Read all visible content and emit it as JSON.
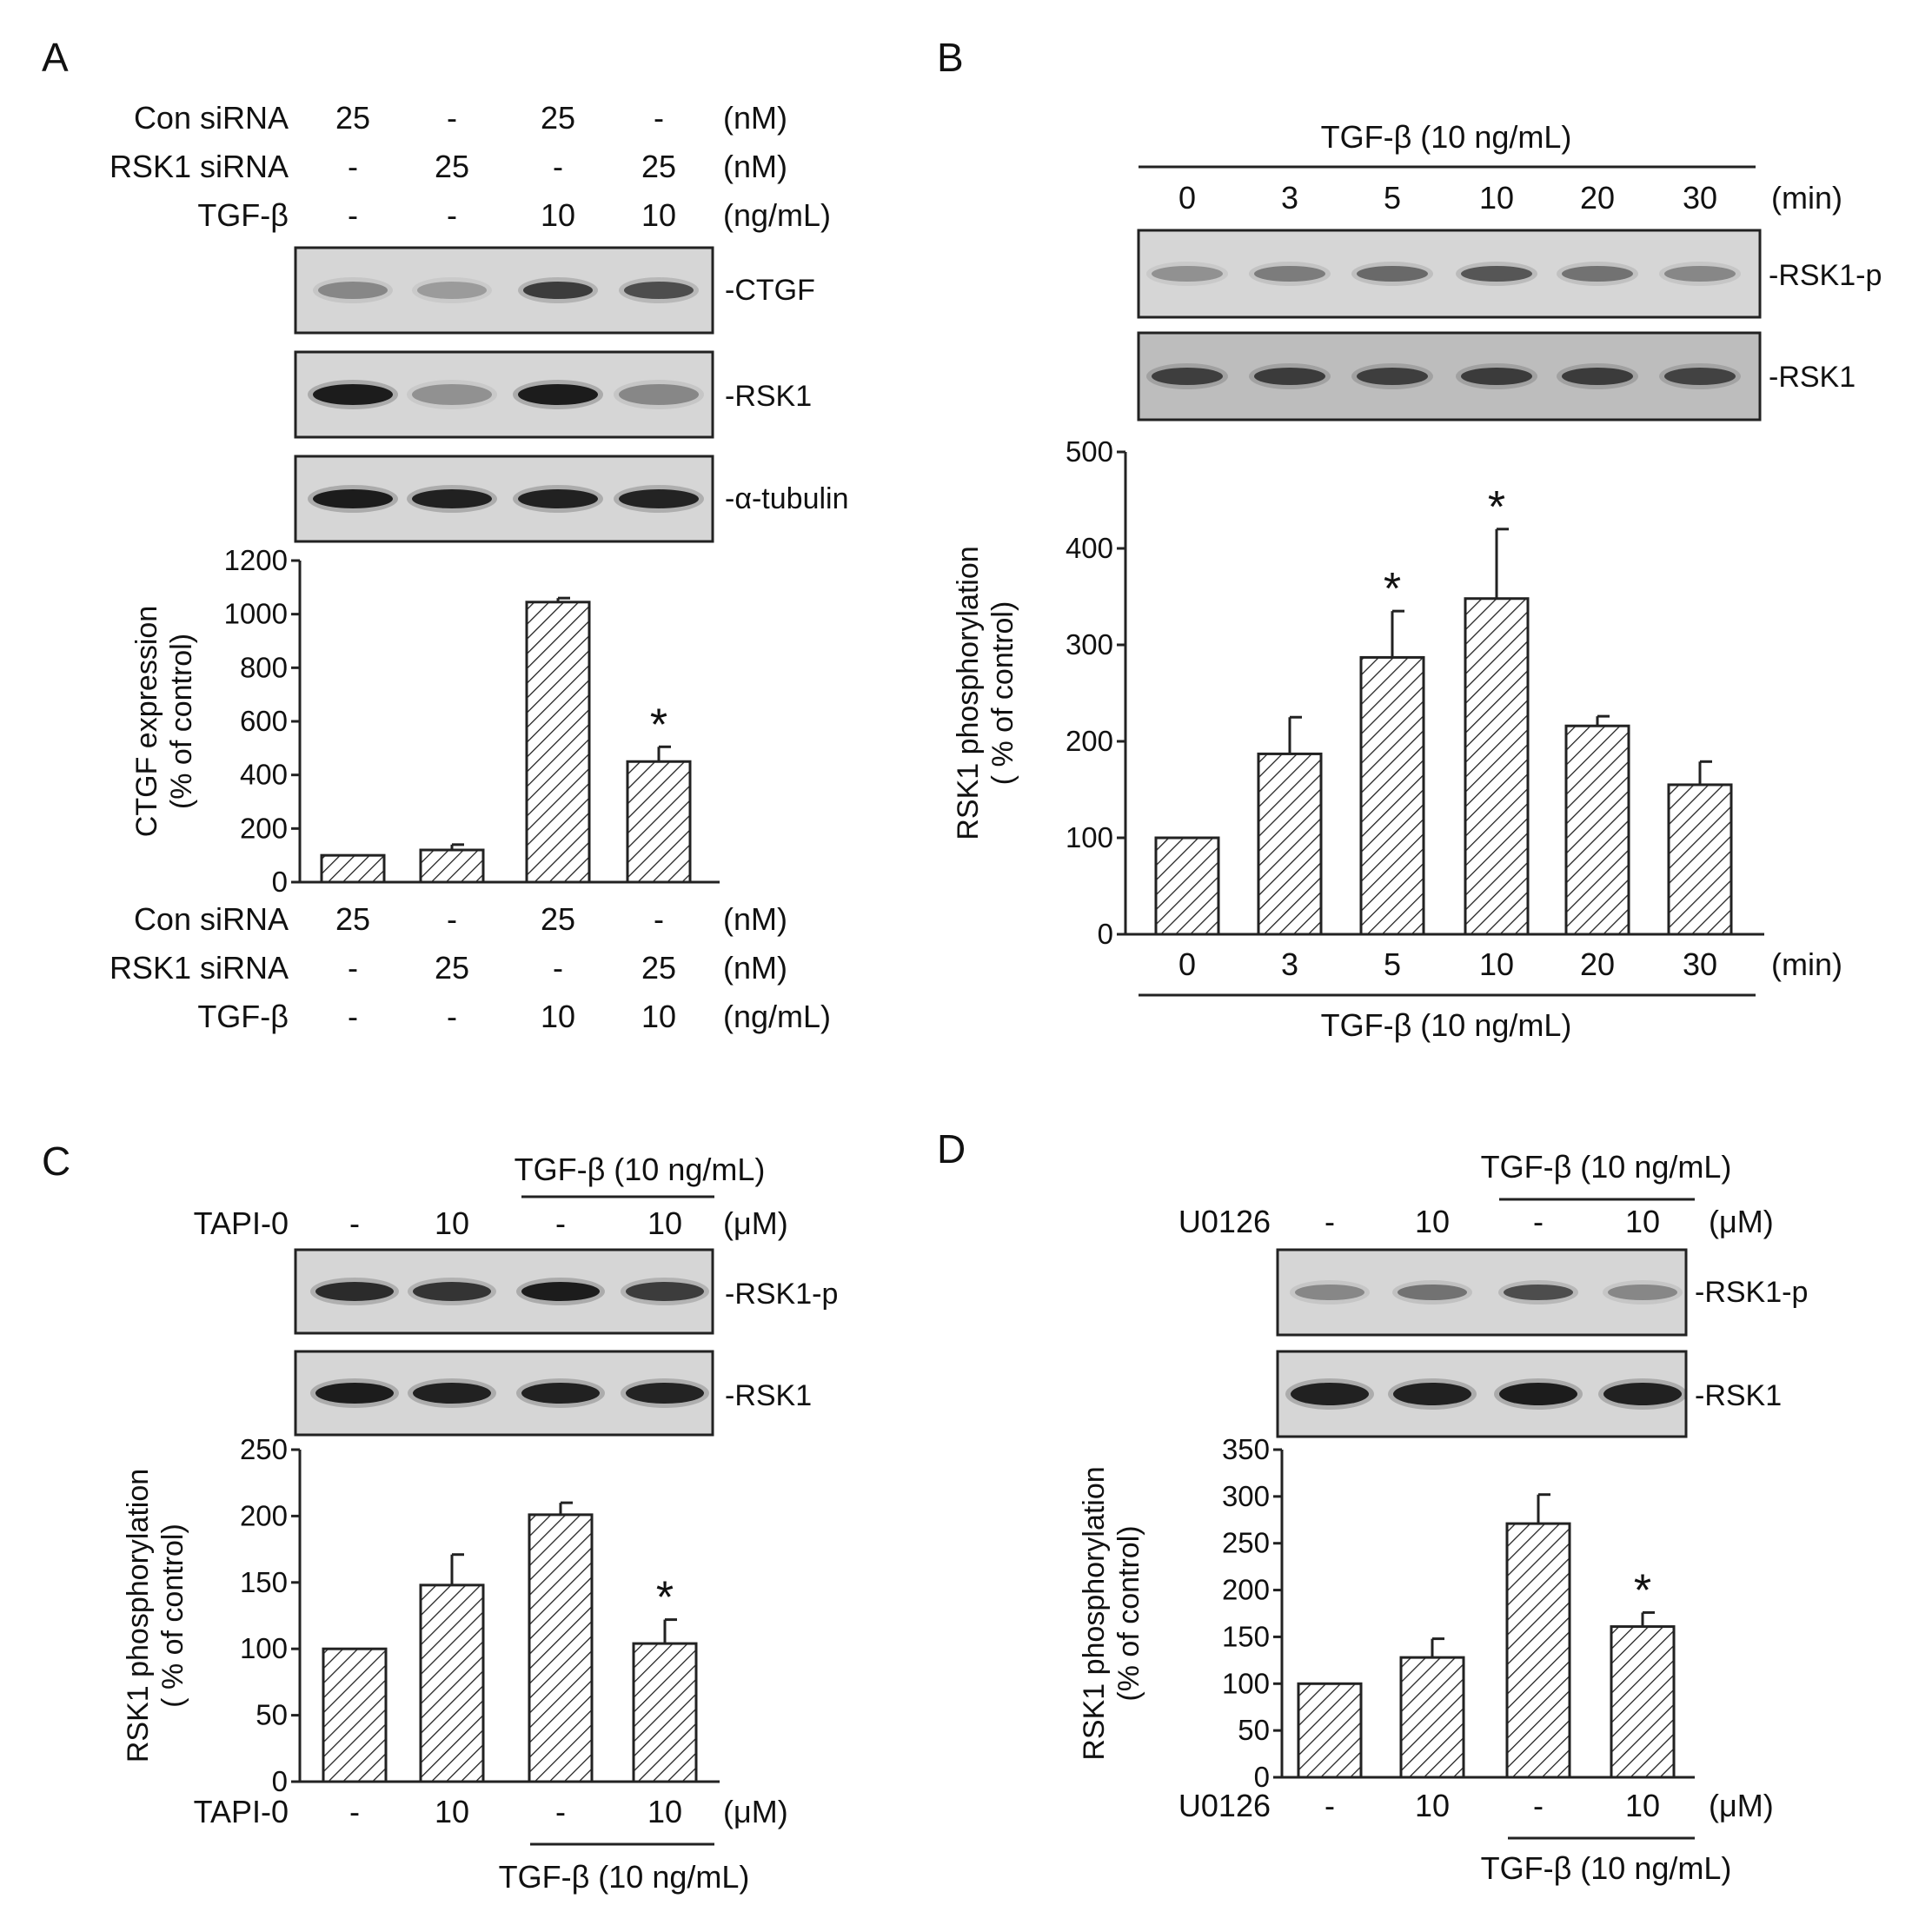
{
  "panels": {
    "A": {
      "letter": "A",
      "top_rows": [
        {
          "label": "Con siRNA",
          "values": [
            "25",
            "-",
            "25",
            "-"
          ],
          "unit": "(nM)"
        },
        {
          "label": "RSK1 siRNA",
          "values": [
            "-",
            "25",
            "-",
            "25"
          ],
          "unit": "(nM)"
        },
        {
          "label": "TGF-β",
          "values": [
            "-",
            "-",
            "10",
            "10"
          ],
          "unit": "(ng/mL)"
        }
      ],
      "blots": [
        "-CTGF",
        "-RSK1",
        "-α-tubulin"
      ],
      "bottom_rows": [
        {
          "label": "Con siRNA",
          "values": [
            "25",
            "-",
            "25",
            "-"
          ],
          "unit": "(nM)"
        },
        {
          "label": "RSK1 siRNA",
          "values": [
            "-",
            "25",
            "-",
            "25"
          ],
          "unit": "(nM)"
        },
        {
          "label": "TGF-β",
          "values": [
            "-",
            "-",
            "10",
            "10"
          ],
          "unit": "(ng/mL)"
        }
      ]
    },
    "B": {
      "letter": "B",
      "treatment_top": "TGF-β (10 ng/mL)",
      "times_top": [
        "0",
        "3",
        "5",
        "10",
        "20",
        "30"
      ],
      "time_unit": "(min)",
      "blots": [
        "-RSK1-p",
        "-RSK1"
      ],
      "times_bottom": [
        "0",
        "3",
        "5",
        "10",
        "20",
        "30"
      ],
      "treatment_bottom": "TGF-β (10 ng/mL)"
    },
    "C": {
      "letter": "C",
      "treatment_top": "TGF-β (10 ng/mL)",
      "top_row": {
        "label": "TAPI-0",
        "values": [
          "-",
          "10",
          "-",
          "10"
        ],
        "unit": "(μM)"
      },
      "blots": [
        "-RSK1-p",
        "-RSK1"
      ],
      "bottom_row": {
        "label": "TAPI-0",
        "values": [
          "-",
          "10",
          "-",
          "10"
        ],
        "unit": "(μM)"
      },
      "treatment_bottom": "TGF-β (10 ng/mL)"
    },
    "D": {
      "letter": "D",
      "treatment_top": "TGF-β (10 ng/mL)",
      "top_row": {
        "label": "U0126",
        "values": [
          "-",
          "10",
          "-",
          "10"
        ],
        "unit": "(μM)"
      },
      "blots": [
        "-RSK1-p",
        "-RSK1"
      ],
      "bottom_row": {
        "label": "U0126",
        "values": [
          "-",
          "10",
          "-",
          "10"
        ],
        "unit": "(μM)"
      },
      "treatment_bottom": "TGF-β (10 ng/mL)"
    }
  },
  "chart_data": [
    {
      "panel": "A",
      "type": "bar",
      "ylabel": "CTGF expression\n(% of control)",
      "ylim": [
        0,
        1200
      ],
      "yticks": [
        0,
        200,
        400,
        600,
        800,
        1000,
        1200
      ],
      "values": [
        100,
        120,
        1045,
        450
      ],
      "errors": [
        0,
        20,
        15,
        55
      ],
      "significant": [
        false,
        false,
        false,
        true
      ],
      "significance_marker": "*"
    },
    {
      "panel": "B",
      "type": "bar",
      "ylabel": "RSK1 phosphorylation\n( % of control)",
      "ylim": [
        0,
        500
      ],
      "yticks": [
        0,
        100,
        200,
        300,
        400,
        500
      ],
      "values": [
        100,
        187,
        287,
        348,
        216,
        155
      ],
      "errors": [
        0,
        38,
        48,
        72,
        10,
        24
      ],
      "significant": [
        false,
        false,
        true,
        true,
        false,
        false
      ],
      "significance_marker": "*"
    },
    {
      "panel": "C",
      "type": "bar",
      "ylabel": "RSK1 phosphorylation\n( % of control)",
      "ylim": [
        0,
        250
      ],
      "yticks": [
        0,
        50,
        100,
        150,
        200,
        250
      ],
      "values": [
        100,
        148,
        201,
        104
      ],
      "errors": [
        0,
        23,
        9,
        18
      ],
      "significant": [
        false,
        false,
        false,
        true
      ],
      "significance_marker": "*"
    },
    {
      "panel": "D",
      "type": "bar",
      "ylabel": "RSK1 phosphorylation\n(% of control)",
      "ylim": [
        0,
        350
      ],
      "yticks": [
        0,
        50,
        100,
        150,
        200,
        250,
        300,
        350
      ],
      "values": [
        100,
        128,
        271,
        161
      ],
      "errors": [
        0,
        20,
        31,
        15
      ],
      "significant": [
        false,
        false,
        false,
        true
      ],
      "significance_marker": "*"
    }
  ]
}
